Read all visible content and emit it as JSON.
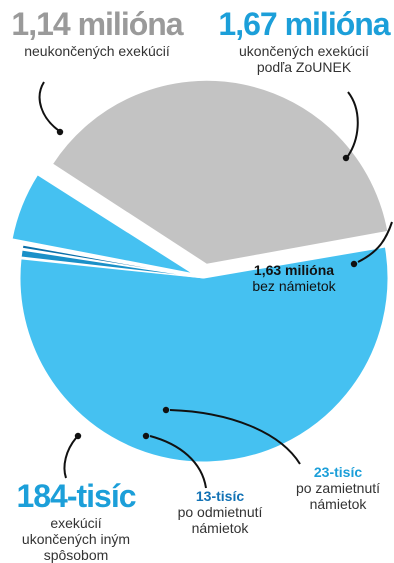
{
  "colors": {
    "grey": "#c3c3c3",
    "light_blue": "#45c1f1",
    "mid_blue": "#1a90c8",
    "dark_blue": "#0a6ea8",
    "label_grey": "#9a9a9a",
    "label_blue": "#1c9fd9",
    "label_dark_blue": "#1272b5",
    "arrow": "#111111"
  },
  "chart_data": {
    "type": "pie",
    "slices": [
      {
        "name": "bez námietok",
        "value": 1630000,
        "value_label": "1,63 milióna",
        "description": "bez námietok"
      },
      {
        "name": "po zamietnutí námietok",
        "value": 23000,
        "value_label": "23-tisíc",
        "description": "po zamietnutí námietok"
      },
      {
        "name": "po odmietnutí námietok",
        "value": 13000,
        "value_label": "13-tisíc",
        "description": "po odmietnutí námietok"
      },
      {
        "name": "exekúcií ukončených iným spôsobom",
        "value": 184000,
        "value_label": "184-tisíc",
        "description": "exekúcií ukončených iným spôsobom"
      },
      {
        "name": "neukončených exekúcií",
        "value": 1140000,
        "value_label": "1,14 milióna",
        "description": "neukončených exekúcií"
      }
    ],
    "group_label": {
      "value_label": "1,67 milióna",
      "description": "ukončených exekúcií podľa ZoUNEK"
    }
  }
}
